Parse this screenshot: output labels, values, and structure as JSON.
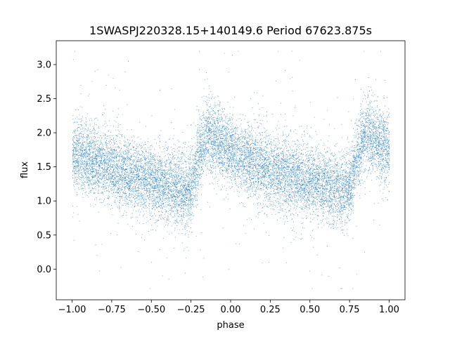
{
  "chart_data": {
    "type": "scatter",
    "title": "1SWASPJ220328.15+140149.6 Period 67623.875s",
    "xlabel": "phase",
    "ylabel": "flux",
    "xlim": [
      -1.1,
      1.1
    ],
    "ylim": [
      -0.45,
      3.35
    ],
    "xticks": [
      -1.0,
      -0.75,
      -0.5,
      -0.25,
      0.0,
      0.25,
      0.5,
      0.75,
      1.0
    ],
    "xtick_labels": [
      "−1.00",
      "−0.75",
      "−0.50",
      "−0.25",
      "0.00",
      "0.25",
      "0.50",
      "0.75",
      "1.00"
    ],
    "yticks": [
      0.0,
      0.5,
      1.0,
      1.5,
      2.0,
      2.5,
      3.0
    ],
    "ytick_labels": [
      "0.0",
      "0.5",
      "1.0",
      "1.5",
      "2.0",
      "2.5",
      "3.0"
    ],
    "grid": false,
    "marker_color": "#1f77b4",
    "series": [
      {
        "x": [
          -1.0,
          -0.9,
          -0.8,
          -0.7,
          -0.6,
          -0.5,
          -0.4,
          -0.3,
          -0.25,
          -0.2,
          -0.15,
          -0.1,
          0.0,
          0.1,
          0.2,
          0.3,
          0.4,
          0.5,
          0.6,
          0.7,
          0.75,
          0.8,
          0.85,
          0.9,
          1.0
        ],
        "y": [
          1.72,
          1.62,
          1.52,
          1.43,
          1.36,
          1.29,
          1.23,
          1.15,
          1.2,
          1.65,
          2.02,
          1.9,
          1.72,
          1.6,
          1.5,
          1.42,
          1.35,
          1.28,
          1.22,
          1.15,
          1.2,
          1.68,
          2.02,
          1.92,
          1.72
        ]
      }
    ]
  }
}
